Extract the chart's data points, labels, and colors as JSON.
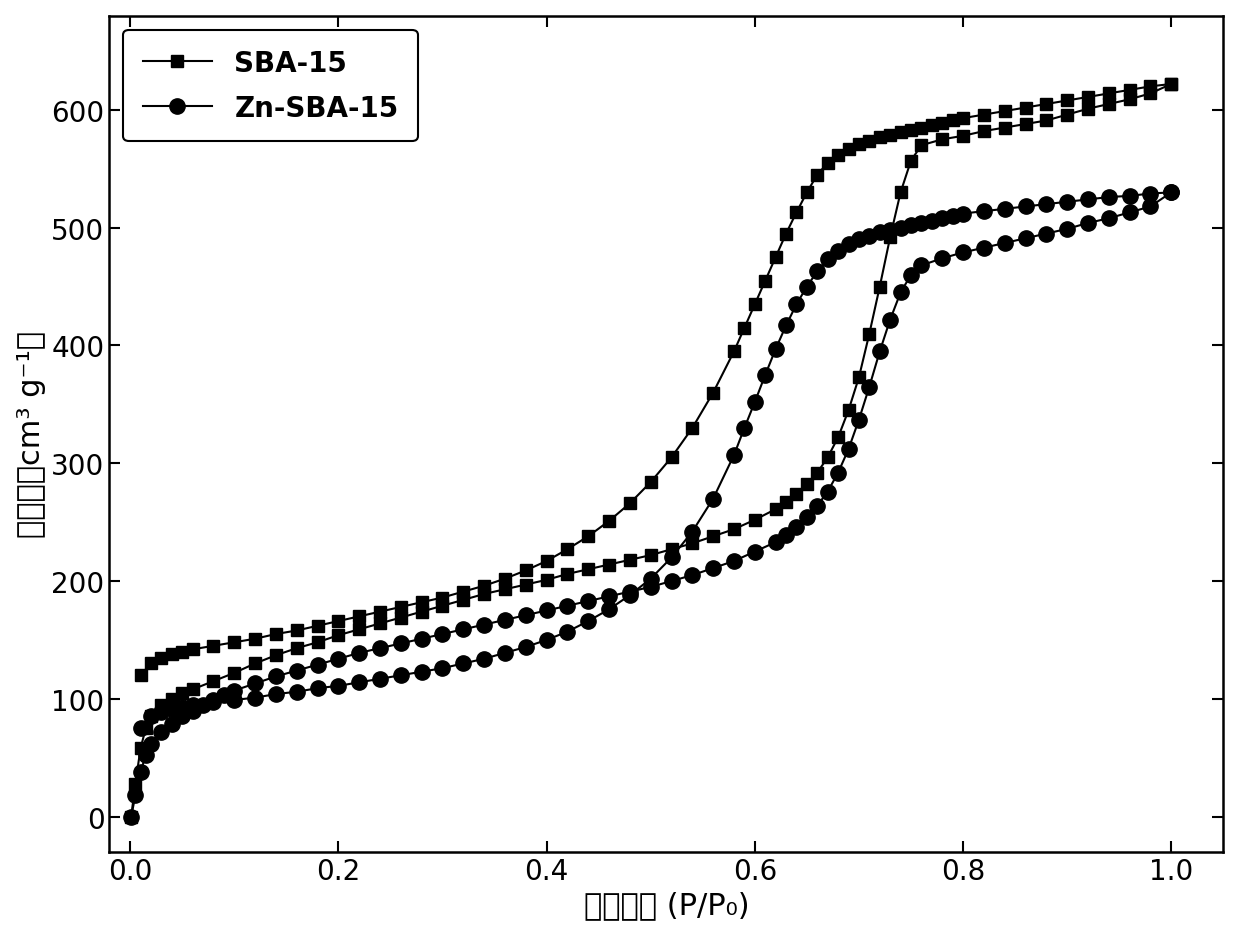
{
  "title": "",
  "xlabel": "相对压力 (P/P₀)",
  "ylabel": "吸附量（cm³ g⁻¹）",
  "xlim": [
    -0.02,
    1.05
  ],
  "ylim": [
    -30,
    680
  ],
  "xticks": [
    0.0,
    0.2,
    0.4,
    0.6,
    0.8,
    1.0
  ],
  "yticks": [
    0,
    100,
    200,
    300,
    400,
    500,
    600
  ],
  "background_color": "#ffffff",
  "line_color": "#000000",
  "legend_labels": [
    "SBA-15",
    "Zn-SBA-15"
  ],
  "sba15_ads_x": [
    0.001,
    0.005,
    0.01,
    0.015,
    0.02,
    0.03,
    0.04,
    0.05,
    0.06,
    0.08,
    0.1,
    0.12,
    0.14,
    0.16,
    0.18,
    0.2,
    0.22,
    0.24,
    0.26,
    0.28,
    0.3,
    0.32,
    0.34,
    0.36,
    0.38,
    0.4,
    0.42,
    0.44,
    0.46,
    0.48,
    0.5,
    0.52,
    0.54,
    0.56,
    0.58,
    0.6,
    0.62,
    0.63,
    0.64,
    0.65,
    0.66,
    0.67,
    0.68,
    0.69,
    0.7,
    0.71,
    0.72,
    0.73,
    0.74,
    0.75,
    0.76,
    0.78,
    0.8,
    0.82,
    0.84,
    0.86,
    0.88,
    0.9,
    0.92,
    0.94,
    0.96,
    0.98,
    1.0
  ],
  "sba15_ads_y": [
    0,
    28,
    58,
    75,
    85,
    95,
    100,
    105,
    108,
    115,
    122,
    130,
    137,
    143,
    148,
    154,
    159,
    164,
    169,
    174,
    179,
    184,
    189,
    193,
    197,
    201,
    206,
    210,
    214,
    218,
    222,
    227,
    232,
    238,
    244,
    252,
    261,
    267,
    274,
    282,
    292,
    305,
    322,
    345,
    373,
    410,
    450,
    492,
    530,
    557,
    570,
    575,
    578,
    582,
    585,
    588,
    591,
    596,
    601,
    605,
    609,
    614,
    622
  ],
  "sba15_des_x": [
    1.0,
    0.98,
    0.96,
    0.94,
    0.92,
    0.9,
    0.88,
    0.86,
    0.84,
    0.82,
    0.8,
    0.79,
    0.78,
    0.77,
    0.76,
    0.75,
    0.74,
    0.73,
    0.72,
    0.71,
    0.7,
    0.69,
    0.68,
    0.67,
    0.66,
    0.65,
    0.64,
    0.63,
    0.62,
    0.61,
    0.6,
    0.59,
    0.58,
    0.56,
    0.54,
    0.52,
    0.5,
    0.48,
    0.46,
    0.44,
    0.42,
    0.4,
    0.38,
    0.36,
    0.34,
    0.32,
    0.3,
    0.28,
    0.26,
    0.24,
    0.22,
    0.2,
    0.18,
    0.16,
    0.14,
    0.12,
    0.1,
    0.08,
    0.06,
    0.05,
    0.04,
    0.03,
    0.02,
    0.01
  ],
  "sba15_des_y": [
    622,
    620,
    617,
    614,
    611,
    608,
    605,
    602,
    599,
    596,
    593,
    591,
    589,
    587,
    585,
    583,
    581,
    579,
    577,
    574,
    571,
    567,
    562,
    555,
    545,
    530,
    513,
    495,
    475,
    455,
    435,
    415,
    395,
    360,
    330,
    305,
    284,
    266,
    251,
    238,
    227,
    217,
    209,
    202,
    196,
    191,
    186,
    182,
    178,
    174,
    170,
    166,
    162,
    158,
    155,
    151,
    148,
    145,
    142,
    140,
    138,
    135,
    130,
    120
  ],
  "znsba15_ads_x": [
    0.001,
    0.005,
    0.01,
    0.015,
    0.02,
    0.03,
    0.04,
    0.05,
    0.06,
    0.07,
    0.08,
    0.09,
    0.1,
    0.12,
    0.14,
    0.16,
    0.18,
    0.2,
    0.22,
    0.24,
    0.26,
    0.28,
    0.3,
    0.32,
    0.34,
    0.36,
    0.38,
    0.4,
    0.42,
    0.44,
    0.46,
    0.48,
    0.5,
    0.52,
    0.54,
    0.56,
    0.58,
    0.6,
    0.62,
    0.63,
    0.64,
    0.65,
    0.66,
    0.67,
    0.68,
    0.69,
    0.7,
    0.71,
    0.72,
    0.73,
    0.74,
    0.75,
    0.76,
    0.78,
    0.8,
    0.82,
    0.84,
    0.86,
    0.88,
    0.9,
    0.92,
    0.94,
    0.96,
    0.98,
    1.0
  ],
  "znsba15_ads_y": [
    0,
    18,
    38,
    52,
    62,
    72,
    79,
    85,
    90,
    95,
    99,
    103,
    107,
    113,
    119,
    124,
    129,
    134,
    139,
    143,
    147,
    151,
    155,
    159,
    163,
    167,
    171,
    175,
    179,
    183,
    187,
    191,
    195,
    200,
    205,
    211,
    217,
    225,
    233,
    239,
    246,
    254,
    264,
    276,
    292,
    312,
    337,
    365,
    395,
    422,
    445,
    460,
    468,
    474,
    479,
    483,
    487,
    491,
    495,
    499,
    504,
    508,
    513,
    518,
    530
  ],
  "znsba15_des_x": [
    1.0,
    0.98,
    0.96,
    0.94,
    0.92,
    0.9,
    0.88,
    0.86,
    0.84,
    0.82,
    0.8,
    0.79,
    0.78,
    0.77,
    0.76,
    0.75,
    0.74,
    0.73,
    0.72,
    0.71,
    0.7,
    0.69,
    0.68,
    0.67,
    0.66,
    0.65,
    0.64,
    0.63,
    0.62,
    0.61,
    0.6,
    0.59,
    0.58,
    0.56,
    0.54,
    0.52,
    0.5,
    0.48,
    0.46,
    0.44,
    0.42,
    0.4,
    0.38,
    0.36,
    0.34,
    0.32,
    0.3,
    0.28,
    0.26,
    0.24,
    0.22,
    0.2,
    0.18,
    0.16,
    0.14,
    0.12,
    0.1,
    0.08,
    0.06,
    0.05,
    0.04,
    0.03,
    0.02,
    0.01
  ],
  "znsba15_des_y": [
    530,
    529,
    527,
    526,
    524,
    522,
    520,
    518,
    516,
    514,
    512,
    510,
    508,
    506,
    504,
    502,
    500,
    498,
    496,
    493,
    490,
    486,
    480,
    473,
    463,
    450,
    435,
    417,
    397,
    375,
    352,
    330,
    307,
    270,
    242,
    220,
    202,
    188,
    176,
    166,
    157,
    150,
    144,
    139,
    134,
    130,
    126,
    123,
    120,
    117,
    114,
    111,
    109,
    106,
    104,
    101,
    99,
    97,
    95,
    93,
    91,
    89,
    85,
    75
  ]
}
